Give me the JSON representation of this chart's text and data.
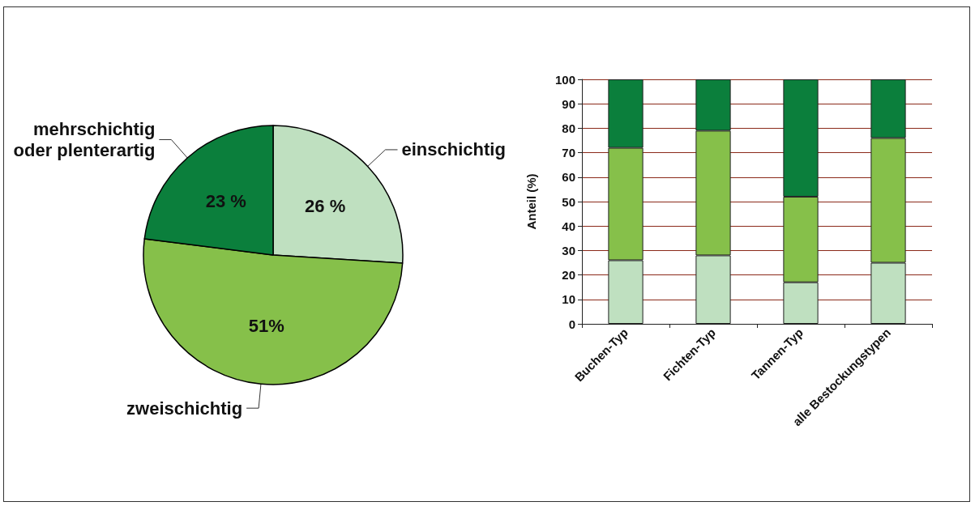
{
  "chart_data": [
    {
      "type": "pie",
      "categories": [
        "einschichtig",
        "zweischichtig",
        "mehrschichtig\noder plenterartig"
      ],
      "values": [
        26,
        51,
        23
      ],
      "value_labels": [
        "26 %",
        "51%",
        "23 %"
      ],
      "colors": [
        "#bfe0c0",
        "#86c04a",
        "#0b7f3c"
      ],
      "legend": false
    },
    {
      "type": "bar",
      "stacked": true,
      "ylabel": "Anteil (%)",
      "categories": [
        "Buchen-Typ",
        "Fichten-Typ",
        "Tannen-Typ",
        "alle Bestockungstypen"
      ],
      "series": [
        {
          "color": "#bfe0c0",
          "values": [
            26,
            28,
            17,
            25
          ]
        },
        {
          "color": "#86c04a",
          "values": [
            46,
            51,
            35,
            51
          ]
        },
        {
          "color": "#0b7f3c",
          "values": [
            28,
            21,
            48,
            24
          ]
        }
      ],
      "ylim": [
        0,
        100
      ],
      "yticks": [
        0,
        10,
        20,
        30,
        40,
        50,
        60,
        70,
        80,
        90,
        100
      ],
      "grid": "y",
      "legend": false
    }
  ]
}
